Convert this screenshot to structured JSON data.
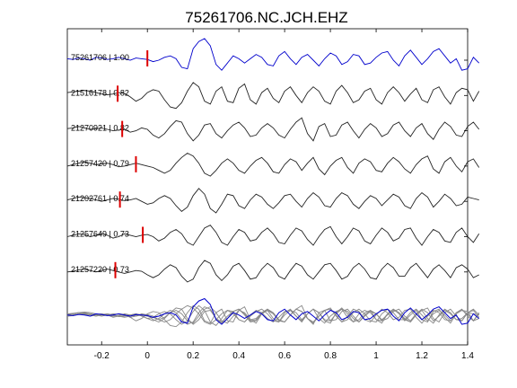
{
  "chart_data": {
    "type": "line",
    "title": "75261706.NC.JCH.EHZ",
    "xlabel": "",
    "ylabel": "",
    "xlim": [
      -0.35,
      1.4
    ],
    "xticks": [
      -0.2,
      0,
      0.2,
      0.4,
      0.6,
      0.8,
      1,
      1.2,
      1.4
    ],
    "xtick_labels": [
      "-0.2",
      "0",
      "0.2",
      "0.4",
      "0.6",
      "0.8",
      "1",
      "1.2",
      "1.4"
    ],
    "x_step": 0.025,
    "colors": {
      "reference": "#0000cc",
      "trace": "#222222",
      "stack": "#888888",
      "pick": "#dd0000"
    },
    "series": [
      {
        "label": "75261706 | 1.00",
        "event_id": "75261706",
        "correlation": 1.0,
        "pick_time": 0.0,
        "color": "#0000cc",
        "y": [
          0.1,
          0.05,
          0.15,
          0.1,
          0.0,
          0.2,
          0.15,
          0.05,
          0.1,
          0.2,
          0.1,
          0.0,
          0.15,
          0.1,
          0.05,
          -0.1,
          0.0,
          0.2,
          0.3,
          0.1,
          -0.5,
          -0.6,
          0.8,
          1.3,
          1.5,
          1.0,
          -0.3,
          -0.7,
          -0.2,
          0.3,
          0.1,
          -0.2,
          0.1,
          0.4,
          0.2,
          -0.3,
          -0.4,
          0.3,
          0.6,
          0.1,
          -0.3,
          0.2,
          0.4,
          0.0,
          -0.4,
          0.1,
          0.5,
          0.3,
          -0.3,
          -0.1,
          0.4,
          0.3,
          -0.3,
          -0.2,
          0.2,
          0.5,
          0.6,
          0.0,
          -0.4,
          0.3,
          0.7,
          0.2,
          -0.3,
          0.1,
          0.6,
          0.8,
          0.3,
          -0.2,
          0.1,
          -0.7,
          -0.6,
          0.2,
          -0.2
        ]
      },
      {
        "label": "21516178 | 0.82",
        "event_id": "21516178",
        "correlation": 0.82,
        "pick_time": -0.13,
        "color": "#222222",
        "y": [
          0.2,
          0.25,
          0.3,
          0.35,
          0.3,
          0.2,
          0.1,
          0.05,
          0.1,
          0.2,
          0.15,
          -0.1,
          -0.4,
          -0.2,
          0.2,
          0.4,
          0.3,
          -0.3,
          -0.8,
          -0.9,
          -0.5,
          0.3,
          0.9,
          0.6,
          -0.4,
          -0.6,
          0.3,
          0.6,
          -0.4,
          -0.5,
          0.5,
          0.8,
          -0.3,
          -0.6,
          0.2,
          0.5,
          -0.2,
          -0.5,
          0.3,
          0.6,
          0.0,
          -0.5,
          0.2,
          0.6,
          0.3,
          -0.4,
          -0.6,
          0.3,
          0.7,
          0.2,
          -0.5,
          -0.3,
          0.3,
          0.5,
          -0.3,
          -0.6,
          0.2,
          0.6,
          0.2,
          -0.4,
          0.1,
          0.5,
          -0.3,
          -0.5,
          0.4,
          0.6,
          -0.1,
          -0.6,
          0.2,
          0.5,
          0.4,
          -0.4,
          0.3
        ]
      },
      {
        "label": "21270921 | 0.82",
        "event_id": "21270921",
        "correlation": 0.82,
        "pick_time": -0.11,
        "color": "#222222",
        "y": [
          0.15,
          0.2,
          0.3,
          0.2,
          0.1,
          0.15,
          0.2,
          0.1,
          0.0,
          0.05,
          0.1,
          -0.1,
          0.0,
          0.2,
          0.1,
          -0.3,
          -0.5,
          -0.2,
          0.3,
          0.7,
          0.6,
          -0.2,
          -0.7,
          -0.3,
          0.4,
          0.5,
          -0.2,
          -0.5,
          0.0,
          0.4,
          0.6,
          0.2,
          -0.4,
          -0.3,
          0.2,
          0.5,
          0.2,
          -0.3,
          -0.5,
          0.1,
          0.6,
          0.9,
          -0.2,
          -0.7,
          0.3,
          0.5,
          -0.4,
          -0.3,
          0.4,
          0.6,
          0.0,
          -0.5,
          0.1,
          0.5,
          0.2,
          -0.4,
          -0.2,
          0.4,
          0.6,
          0.0,
          -0.4,
          0.2,
          0.5,
          -0.2,
          -0.6,
          0.1,
          0.6,
          0.3,
          -0.3,
          -0.4,
          0.3,
          0.6,
          0.1
        ]
      },
      {
        "label": "21257420 | 0.79",
        "event_id": "21257420",
        "correlation": 0.79,
        "pick_time": -0.05,
        "color": "#222222",
        "y": [
          0.0,
          0.1,
          0.2,
          0.3,
          0.2,
          0.1,
          0.15,
          0.2,
          0.1,
          -0.05,
          0.0,
          0.1,
          0.2,
          0.1,
          0.0,
          -0.1,
          -0.3,
          -0.5,
          -0.3,
          0.2,
          0.6,
          0.9,
          0.7,
          0.2,
          -0.5,
          -0.7,
          -0.3,
          0.2,
          0.5,
          0.2,
          -0.3,
          -0.5,
          0.0,
          0.4,
          0.6,
          0.2,
          -0.4,
          -0.5,
          0.1,
          0.5,
          0.3,
          -0.3,
          0.2,
          0.6,
          -0.2,
          -0.6,
          0.0,
          0.4,
          0.6,
          -0.1,
          -0.5,
          0.2,
          0.5,
          0.3,
          -0.3,
          -0.4,
          0.2,
          0.6,
          0.3,
          -0.2,
          -0.5,
          0.1,
          0.5,
          0.7,
          -0.2,
          -0.5,
          0.3,
          0.6,
          0.0,
          -0.4,
          0.3,
          0.5,
          -0.1
        ]
      },
      {
        "label": "21202761 | 0.74",
        "event_id": "21202761",
        "correlation": 0.74,
        "pick_time": -0.12,
        "color": "#222222",
        "y": [
          0.1,
          0.2,
          0.3,
          0.25,
          0.2,
          0.1,
          0.0,
          0.1,
          0.2,
          0.15,
          0.05,
          0.1,
          0.2,
          0.0,
          -0.2,
          -0.1,
          0.2,
          0.4,
          0.2,
          -0.3,
          -0.7,
          -0.4,
          0.4,
          0.9,
          0.5,
          -0.5,
          -0.8,
          -0.2,
          0.5,
          0.4,
          -0.3,
          -0.5,
          0.1,
          0.5,
          0.3,
          -0.2,
          -0.5,
          -0.1,
          0.4,
          0.5,
          0.0,
          -0.4,
          0.2,
          0.6,
          0.3,
          -0.3,
          -0.4,
          0.2,
          0.6,
          0.4,
          -0.2,
          -0.5,
          0.0,
          0.4,
          0.2,
          -0.3,
          0.1,
          0.5,
          0.3,
          -0.3,
          -0.5,
          0.2,
          0.6,
          0.3,
          -0.4,
          0.0,
          0.5,
          0.2,
          -0.3,
          -0.2,
          0.3,
          0.2,
          0.1
        ]
      },
      {
        "label": "21257649 | 0.73",
        "event_id": "21257649",
        "correlation": 0.73,
        "pick_time": -0.02,
        "color": "#222222",
        "y": [
          0.0,
          0.1,
          0.2,
          0.15,
          0.0,
          0.1,
          0.2,
          0.1,
          -0.1,
          0.0,
          0.2,
          0.1,
          0.0,
          0.1,
          0.15,
          0.0,
          -0.3,
          -0.1,
          0.3,
          0.5,
          0.2,
          -0.4,
          -0.6,
          0.0,
          0.6,
          0.8,
          0.3,
          -0.4,
          -0.6,
          0.0,
          0.5,
          0.3,
          -0.3,
          -0.2,
          0.3,
          0.6,
          0.2,
          -0.4,
          -0.5,
          0.1,
          0.6,
          0.4,
          -0.2,
          -0.6,
          0.0,
          0.5,
          0.7,
          0.0,
          -0.5,
          0.0,
          0.6,
          0.4,
          -0.3,
          -0.5,
          0.1,
          0.6,
          0.3,
          -0.3,
          -0.1,
          0.5,
          0.6,
          -0.1,
          -0.6,
          0.0,
          0.5,
          0.3,
          -0.3,
          -0.4,
          0.3,
          0.6,
          0.0,
          -0.4,
          0.2
        ]
      },
      {
        "label": "21257220 | 0.73",
        "event_id": "21257220",
        "correlation": 0.73,
        "pick_time": -0.14,
        "color": "#222222",
        "y": [
          0.0,
          0.05,
          0.15,
          0.2,
          0.1,
          0.0,
          0.1,
          0.2,
          0.1,
          0.0,
          -0.1,
          0.0,
          0.1,
          0.05,
          -0.2,
          -0.4,
          -0.2,
          0.2,
          0.5,
          0.3,
          -0.3,
          -0.7,
          -0.5,
          0.3,
          0.8,
          0.6,
          -0.2,
          -0.6,
          -0.2,
          0.4,
          0.6,
          0.1,
          -0.5,
          -0.4,
          0.2,
          0.6,
          0.3,
          -0.3,
          -0.5,
          0.1,
          0.6,
          0.4,
          -0.2,
          -0.5,
          0.0,
          0.5,
          0.6,
          0.1,
          -0.5,
          -0.3,
          0.3,
          0.6,
          0.2,
          -0.4,
          -0.5,
          0.2,
          0.6,
          0.3,
          -0.3,
          -0.3,
          0.3,
          0.6,
          0.1,
          -0.4,
          0.2,
          0.5,
          0.1,
          -0.4,
          0.3,
          0.5,
          0.2,
          -0.4,
          -0.2
        ]
      }
    ]
  }
}
